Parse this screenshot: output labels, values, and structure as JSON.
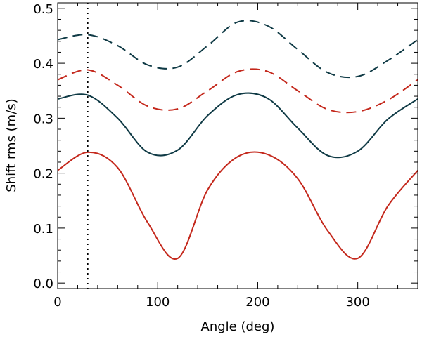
{
  "chart_data": {
    "type": "line",
    "title": "",
    "xlabel": "Angle (deg)",
    "ylabel": "Shift rms (m/s)",
    "xlim": [
      0,
      360
    ],
    "ylim": [
      -0.01,
      0.51
    ],
    "xticks": [
      0,
      100,
      200,
      300
    ],
    "xtick_labels": [
      "0",
      "100",
      "200",
      "300"
    ],
    "yticks": [
      0.0,
      0.1,
      0.2,
      0.3,
      0.4,
      0.5
    ],
    "ytick_labels": [
      "0.0",
      "0.1",
      "0.2",
      "0.3",
      "0.4",
      "0.5"
    ],
    "grid": false,
    "vline": {
      "x": 30,
      "style": "dotted",
      "color": "#000000"
    },
    "x": [
      0,
      30,
      60,
      90,
      120,
      150,
      180,
      210,
      240,
      270,
      300,
      330,
      360
    ],
    "series": [
      {
        "name": "dark dashed",
        "style": "dashed",
        "color": "#0f3a45",
        "values": [
          0.443,
          0.452,
          0.432,
          0.397,
          0.393,
          0.432,
          0.475,
          0.468,
          0.425,
          0.383,
          0.376,
          0.405,
          0.443
        ]
      },
      {
        "name": "red dashed",
        "style": "dashed",
        "color": "#c4281c",
        "values": [
          0.37,
          0.388,
          0.36,
          0.322,
          0.317,
          0.35,
          0.385,
          0.385,
          0.35,
          0.316,
          0.312,
          0.333,
          0.37
        ]
      },
      {
        "name": "dark solid",
        "style": "solid",
        "color": "#0f3a45",
        "values": [
          0.335,
          0.342,
          0.3,
          0.238,
          0.242,
          0.305,
          0.343,
          0.336,
          0.282,
          0.232,
          0.24,
          0.298,
          0.335
        ]
      },
      {
        "name": "red solid",
        "style": "solid",
        "color": "#c4281c",
        "values": [
          0.205,
          0.238,
          0.21,
          0.11,
          0.045,
          0.17,
          0.23,
          0.234,
          0.19,
          0.095,
          0.045,
          0.14,
          0.205
        ]
      }
    ]
  }
}
